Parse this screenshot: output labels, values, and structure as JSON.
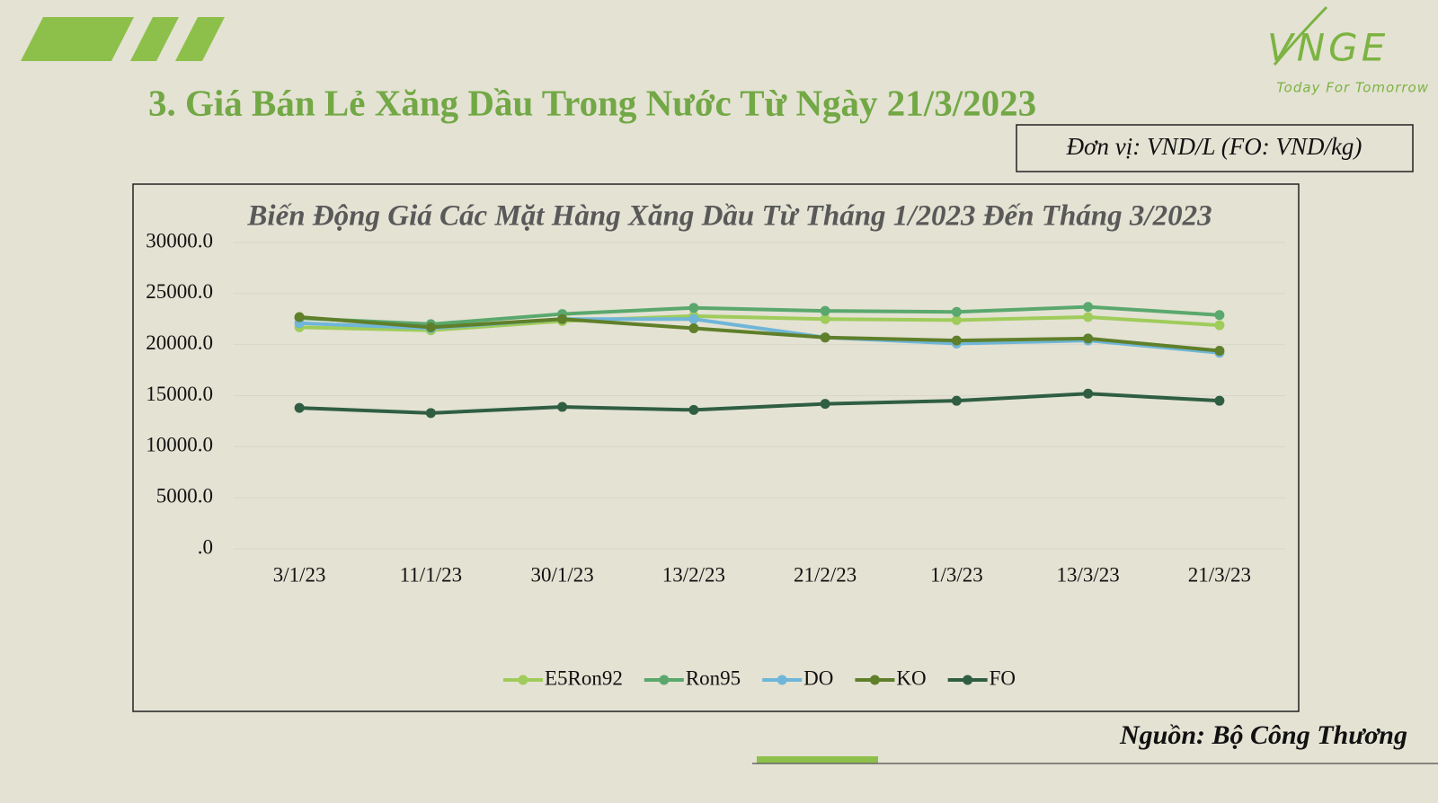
{
  "title": "3. Giá Bán Lẻ Xăng Dầu Trong Nước Từ Ngày 21/3/2023",
  "logo": {
    "text": "VNGE",
    "tagline": "Today For Tomorrow"
  },
  "unit": "Đơn vị: VND/L (FO: VND/kg)",
  "source": "Nguồn: Bộ Công Thương",
  "chart_data": {
    "type": "line",
    "title": "Biến Động Giá Các Mặt Hàng Xăng Dầu Từ Tháng 1/2023 Đến Tháng 3/2023",
    "categories": [
      "3/1/23",
      "11/1/23",
      "30/1/23",
      "13/2/23",
      "21/2/23",
      "1/3/23",
      "13/3/23",
      "21/3/23"
    ],
    "series": [
      {
        "name": "E5Ron92",
        "color": "#9fcc5a",
        "values": [
          21700,
          21400,
          22300,
          22800,
          22500,
          22400,
          22700,
          21900
        ]
      },
      {
        "name": "Ron95",
        "color": "#5aa86d",
        "values": [
          22600,
          22000,
          23000,
          23600,
          23300,
          23200,
          23700,
          22900
        ]
      },
      {
        "name": "DO",
        "color": "#6fb6d8",
        "values": [
          22100,
          21600,
          22500,
          22500,
          20700,
          20100,
          20400,
          19200
        ]
      },
      {
        "name": "KO",
        "color": "#5f7f2a",
        "values": [
          22700,
          21700,
          22500,
          21600,
          20700,
          20400,
          20600,
          19400
        ]
      },
      {
        "name": "FO",
        "color": "#2f5e43",
        "values": [
          13800,
          13300,
          13900,
          13600,
          14200,
          14500,
          15200,
          14500
        ]
      }
    ],
    "ylim": [
      0,
      30000
    ],
    "yticks": [
      {
        "value": 0,
        "label": ".0"
      },
      {
        "value": 5000,
        "label": "5000.0"
      },
      {
        "value": 10000,
        "label": "10000.0"
      },
      {
        "value": 15000,
        "label": "15000.0"
      },
      {
        "value": 20000,
        "label": "20000.0"
      },
      {
        "value": 25000,
        "label": "25000.0"
      },
      {
        "value": 30000,
        "label": "30000.0"
      }
    ],
    "grid": true,
    "legend": "bottom"
  }
}
